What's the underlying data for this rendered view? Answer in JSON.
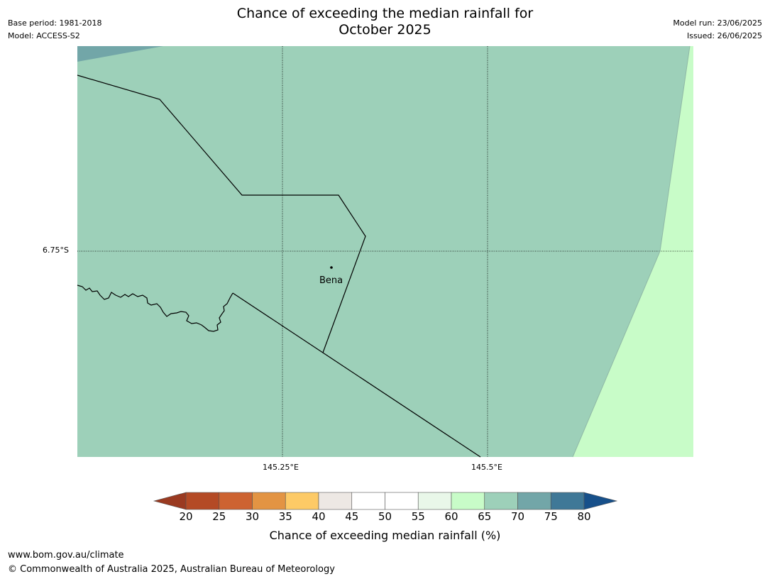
{
  "title": "Chance of exceeding the median rainfall for\nOctober 2025",
  "meta_left": {
    "base_period": "Base period: 1981-2018",
    "model": "Model: ACCESS-S2"
  },
  "meta_right": {
    "model_run": "Model run: 23/06/2025",
    "issued": "Issued: 26/06/2025"
  },
  "map": {
    "latitude_label": "6.75°S",
    "longitude_labels": [
      "145.25°E",
      "145.5°E"
    ],
    "place": "Bena",
    "region_colors": {
      "main": "#9dd0b9",
      "upper_left": "#72a6a8",
      "right": "#c8fcc8"
    }
  },
  "colorbar": {
    "title": "Chance of exceeding median rainfall (%)",
    "ticks": [
      "20",
      "25",
      "30",
      "35",
      "40",
      "45",
      "50",
      "55",
      "60",
      "65",
      "70",
      "75",
      "80"
    ],
    "colors": [
      "#9a3a21",
      "#b44a25",
      "#cd6331",
      "#e39443",
      "#fdca66",
      "#ede8e4",
      "#ffffff",
      "#ffffff",
      "#e9f7e9",
      "#c8fcc8",
      "#9dd0b9",
      "#72a6a8",
      "#3f7897",
      "#17508a"
    ]
  },
  "footer": {
    "url": "www.bom.gov.au/climate",
    "copyright": "© Commonwealth of Australia 2025, Australian Bureau of Meteorology"
  }
}
